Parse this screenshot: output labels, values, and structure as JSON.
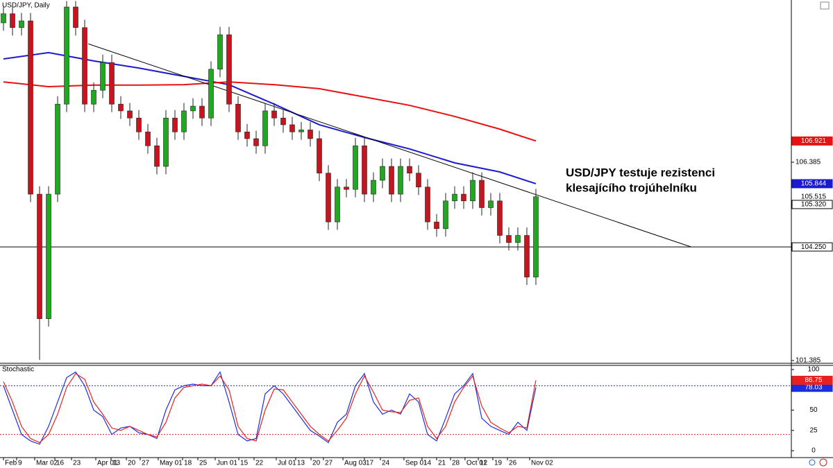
{
  "chart_data": [
    {
      "type": "candlestick",
      "title": "USD/JPY, Daily",
      "annotation": [
        "USD/JPY testuje rezistenci",
        "klesajícího trojúhelníku"
      ],
      "open": [
        109.9,
        110.13,
        109.78,
        109.95,
        105.58,
        102.44,
        105.58,
        107.85,
        110.3,
        109.78,
        107.85,
        108.2,
        108.9,
        107.85,
        107.68,
        107.5,
        107.15,
        106.8,
        106.28,
        107.5,
        107.15,
        107.68,
        107.8,
        107.5,
        108.73,
        109.6,
        107.85,
        107.15,
        106.98,
        106.8,
        107.68,
        107.5,
        107.33,
        107.15,
        107.2,
        106.98,
        106.11,
        104.88,
        105.76,
        105.7,
        106.8,
        105.58,
        105.93,
        106.28,
        105.58,
        106.28,
        106.11,
        105.76,
        104.88,
        104.71,
        105.41,
        105.58,
        105.41,
        105.93,
        105.24,
        105.41,
        104.54,
        104.36,
        104.54,
        103.49
      ],
      "high": [
        110.33,
        110.33,
        110.15,
        110.15,
        105.78,
        105.78,
        108.05,
        110.45,
        110.45,
        109.98,
        108.4,
        109.1,
        109.1,
        108.05,
        107.88,
        107.7,
        107.35,
        107.0,
        107.7,
        107.7,
        107.88,
        108.0,
        108.0,
        108.93,
        109.8,
        109.8,
        108.05,
        107.35,
        107.18,
        107.88,
        107.88,
        107.7,
        107.53,
        107.4,
        107.4,
        107.18,
        106.31,
        105.96,
        105.96,
        107.0,
        107.0,
        106.13,
        106.48,
        106.48,
        106.48,
        106.48,
        106.31,
        105.96,
        105.08,
        105.61,
        105.78,
        105.78,
        106.13,
        106.13,
        105.61,
        105.61,
        104.74,
        104.74,
        104.74,
        105.715
      ],
      "low": [
        109.7,
        109.58,
        109.58,
        105.38,
        101.4,
        102.24,
        105.38,
        107.65,
        109.58,
        107.65,
        107.65,
        108.0,
        107.65,
        107.48,
        107.3,
        106.95,
        106.6,
        106.08,
        106.08,
        106.95,
        106.95,
        107.48,
        107.3,
        107.3,
        108.53,
        107.65,
        106.95,
        106.78,
        106.6,
        106.6,
        107.3,
        107.13,
        106.95,
        106.95,
        106.78,
        105.91,
        104.68,
        104.68,
        105.5,
        105.5,
        105.38,
        105.38,
        105.73,
        105.38,
        105.38,
        105.91,
        105.56,
        104.68,
        104.51,
        104.51,
        105.21,
        105.21,
        105.21,
        105.04,
        105.04,
        104.34,
        104.16,
        104.16,
        103.29,
        103.29
      ],
      "close": [
        110.13,
        109.78,
        109.95,
        105.58,
        102.44,
        105.58,
        107.85,
        110.3,
        109.78,
        107.85,
        108.2,
        108.9,
        107.85,
        107.68,
        107.5,
        107.15,
        106.8,
        106.28,
        107.5,
        107.15,
        107.68,
        107.8,
        107.5,
        108.73,
        109.6,
        107.85,
        107.15,
        106.98,
        106.8,
        107.68,
        107.5,
        107.33,
        107.15,
        107.2,
        106.98,
        106.11,
        104.88,
        105.76,
        105.7,
        106.8,
        105.58,
        105.93,
        106.28,
        105.58,
        106.28,
        106.11,
        105.76,
        104.88,
        104.71,
        105.41,
        105.58,
        105.41,
        105.93,
        105.24,
        105.41,
        104.54,
        104.36,
        104.54,
        103.49,
        105.515
      ],
      "up_color": "#22a722",
      "down_color": "#c8141e",
      "xlim": [
        -0.385,
        87.31
      ],
      "ylim": [
        101.315,
        110.476
      ],
      "yticks": [
        101.385,
        106.385
      ],
      "xticks": [
        {
          "value": 0,
          "label": "Feb"
        },
        {
          "value": 1.46,
          "label": "9"
        },
        {
          "value": 3.46,
          "label": "Mar 02"
        },
        {
          "value": 5.69,
          "label": "16"
        },
        {
          "value": 7.54,
          "label": "23"
        },
        {
          "value": 10.23,
          "label": "Apr 01"
        },
        {
          "value": 11.92,
          "label": "13"
        },
        {
          "value": 13.62,
          "label": "20"
        },
        {
          "value": 15.15,
          "label": "27"
        },
        {
          "value": 17.15,
          "label": "May 01"
        },
        {
          "value": 19.85,
          "label": "18"
        },
        {
          "value": 21.54,
          "label": "25"
        },
        {
          "value": 23.46,
          "label": "Jun 01"
        },
        {
          "value": 26.08,
          "label": "15"
        },
        {
          "value": 27.77,
          "label": "22"
        },
        {
          "value": 30.23,
          "label": "Jul 01"
        },
        {
          "value": 32.38,
          "label": "13"
        },
        {
          "value": 34.08,
          "label": "20"
        },
        {
          "value": 35.46,
          "label": "27"
        },
        {
          "value": 37.62,
          "label": "Aug 03"
        },
        {
          "value": 40,
          "label": "17"
        },
        {
          "value": 41.77,
          "label": "24"
        },
        {
          "value": 44.38,
          "label": "Sep 01"
        },
        {
          "value": 46.38,
          "label": "14"
        },
        {
          "value": 48,
          "label": "21"
        },
        {
          "value": 49.54,
          "label": "28"
        },
        {
          "value": 51.15,
          "label": "Oct 01"
        },
        {
          "value": 52.62,
          "label": "12"
        },
        {
          "value": 54.23,
          "label": "19"
        },
        {
          "value": 55.85,
          "label": "26"
        },
        {
          "value": 58.31,
          "label": "Nov 02"
        }
      ],
      "lines": [
        {
          "color": "#1a1ad0",
          "x": [
            0,
            5,
            10,
            15,
            20,
            25,
            30,
            35,
            40,
            45,
            50,
            55,
            59
          ],
          "values": [
            108.99,
            109.15,
            108.94,
            108.76,
            108.55,
            108.34,
            107.85,
            107.33,
            107.01,
            106.72,
            106.37,
            106.14,
            105.844
          ]
        },
        {
          "color": "#e81010",
          "x": [
            0,
            5,
            10,
            15,
            20,
            25,
            30,
            35,
            40,
            45,
            50,
            55,
            59
          ],
          "values": [
            108.41,
            108.29,
            108.33,
            108.33,
            108.34,
            108.41,
            108.34,
            108.24,
            108.03,
            107.82,
            107.54,
            107.22,
            106.921
          ]
        }
      ],
      "trendline": {
        "color": "#000000",
        "x": [
          9.4,
          76.2
        ],
        "values": [
          109.37,
          104.25
        ]
      },
      "levels": [
        {
          "value": 104.25,
          "label": "104.250"
        },
        {
          "value": 105.32,
          "label": "105.320"
        }
      ]
    },
    {
      "type": "line",
      "title": "Stochastic",
      "xlim": [
        -0.385,
        87.31
      ],
      "ylim": [
        -8.5,
        105.1
      ],
      "yticks": [
        0,
        25,
        50,
        100
      ],
      "series": [
        {
          "color": "#1a2ee0",
          "values": [
            80,
            50,
            20,
            12,
            8,
            30,
            60,
            90,
            97,
            80,
            50,
            42,
            20,
            28,
            30,
            22,
            20,
            15,
            50,
            75,
            80,
            82,
            80,
            80,
            97,
            60,
            20,
            12,
            15,
            70,
            80,
            70,
            55,
            40,
            25,
            18,
            10,
            35,
            45,
            80,
            95,
            60,
            45,
            50,
            45,
            70,
            60,
            20,
            12,
            40,
            70,
            80,
            95,
            40,
            30,
            25,
            20,
            35,
            25,
            78.03
          ]
        },
        {
          "color": "#e82020",
          "values": [
            85,
            60,
            30,
            15,
            10,
            20,
            45,
            78,
            95,
            88,
            60,
            45,
            28,
            25,
            30,
            25,
            20,
            17,
            35,
            65,
            78,
            80,
            82,
            80,
            92,
            75,
            30,
            15,
            12,
            50,
            76,
            75,
            60,
            45,
            30,
            20,
            12,
            25,
            40,
            70,
            92,
            72,
            50,
            48,
            47,
            62,
            65,
            30,
            15,
            30,
            60,
            78,
            92,
            55,
            35,
            28,
            22,
            30,
            28,
            86.75
          ]
        }
      ],
      "levels": [
        {
          "value": 80,
          "color": "#2030c0"
        },
        {
          "value": 20,
          "color": "#e02020"
        }
      ]
    }
  ]
}
